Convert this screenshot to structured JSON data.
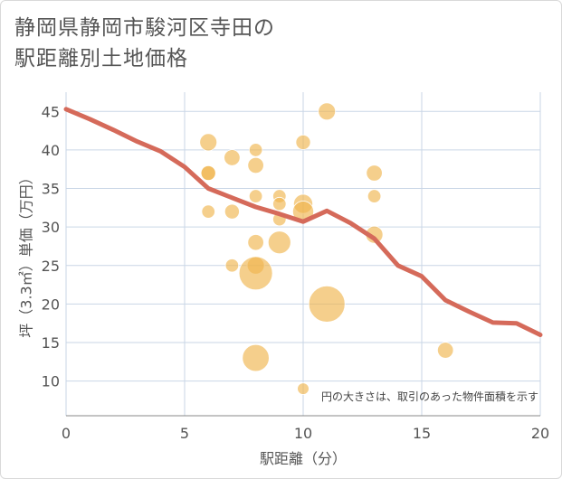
{
  "title": {
    "line1": "静岡県静岡市駿河区寺田の",
    "line2": "駅距離別土地価格"
  },
  "chart_data": {
    "type": "scatter",
    "xlabel": "駅距離（分）",
    "ylabel": "坪（3.3㎡）単価（万円）",
    "xlim": [
      0,
      20
    ],
    "ylim": [
      5.5,
      47.5
    ],
    "xticks": [
      0,
      5,
      10,
      15,
      20
    ],
    "yticks": [
      10,
      15,
      20,
      25,
      30,
      35,
      40,
      45
    ],
    "grid": true,
    "note": "円の大きさは、取引のあった物件面積を示す",
    "colors": {
      "bubble": "#f0b64e",
      "line": "#d56a5a",
      "grid": "#c9d6e6"
    },
    "bubbles": [
      {
        "x": 6,
        "y": 41,
        "size": 3
      },
      {
        "x": 6,
        "y": 37,
        "size": 2
      },
      {
        "x": 6,
        "y": 37,
        "size": 2
      },
      {
        "x": 6,
        "y": 32,
        "size": 1.5
      },
      {
        "x": 7,
        "y": 39,
        "size": 2.5
      },
      {
        "x": 7,
        "y": 32,
        "size": 2
      },
      {
        "x": 7,
        "y": 25,
        "size": 1.5
      },
      {
        "x": 8,
        "y": 40,
        "size": 1.5
      },
      {
        "x": 8,
        "y": 38,
        "size": 2.5
      },
      {
        "x": 8,
        "y": 34,
        "size": 1.5
      },
      {
        "x": 8,
        "y": 28,
        "size": 2.5
      },
      {
        "x": 8,
        "y": 25,
        "size": 3
      },
      {
        "x": 8,
        "y": 24,
        "size": 15
      },
      {
        "x": 8,
        "y": 13,
        "size": 9
      },
      {
        "x": 9,
        "y": 34,
        "size": 1.5
      },
      {
        "x": 9,
        "y": 33,
        "size": 1.5
      },
      {
        "x": 9,
        "y": 31,
        "size": 1.5
      },
      {
        "x": 9,
        "y": 28,
        "size": 6
      },
      {
        "x": 10,
        "y": 41,
        "size": 2
      },
      {
        "x": 10,
        "y": 33,
        "size": 4
      },
      {
        "x": 10,
        "y": 32,
        "size": 5
      },
      {
        "x": 10,
        "y": 9,
        "size": 1
      },
      {
        "x": 11,
        "y": 45,
        "size": 3
      },
      {
        "x": 11,
        "y": 20,
        "size": 18
      },
      {
        "x": 13,
        "y": 37,
        "size": 2.5
      },
      {
        "x": 13,
        "y": 34,
        "size": 1.5
      },
      {
        "x": 13,
        "y": 29,
        "size": 3
      },
      {
        "x": 16,
        "y": 14,
        "size": 2.5
      }
    ],
    "trend": {
      "x": [
        0,
        1,
        2,
        3,
        4,
        5,
        6,
        7,
        8,
        9,
        10,
        11,
        12,
        13,
        14,
        15,
        16,
        17,
        18,
        19,
        20
      ],
      "y": [
        45.3,
        44,
        42.6,
        41.1,
        39.8,
        37.8,
        35,
        33.8,
        32.6,
        31.7,
        30.7,
        32.1,
        30.5,
        28.5,
        25,
        23.6,
        20.5,
        19,
        17.6,
        17.5,
        16
      ]
    }
  }
}
